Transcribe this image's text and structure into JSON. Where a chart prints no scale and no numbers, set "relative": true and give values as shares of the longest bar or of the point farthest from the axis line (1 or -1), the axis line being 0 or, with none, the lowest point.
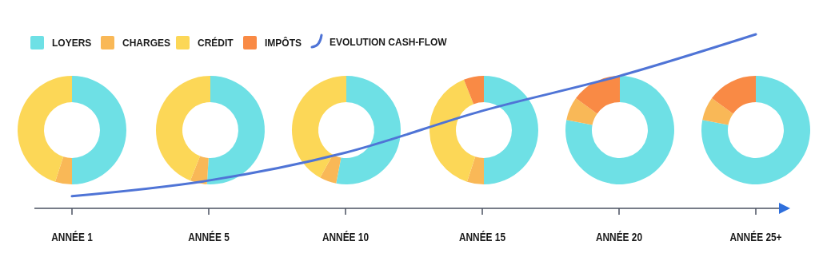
{
  "chart_data": [
    {
      "type": "line",
      "relative": true,
      "categories": [
        "ANNÉE 1",
        "ANNÉE 5",
        "ANNÉE 10",
        "ANNÉE 15",
        "ANNÉE 20",
        "ANNÉE 25+"
      ],
      "series": [
        {
          "name": "EVOLUTION CASH-FLOW",
          "color": "#4f74d6",
          "values": [
            0.07,
            0.16,
            0.32,
            0.56,
            0.76,
            1
          ]
        }
      ],
      "legend": "top",
      "marker": "none"
    },
    {
      "type": "donut",
      "categories": [
        "LOYERS",
        "CHARGES",
        "CRÉDIT",
        "IMPÔTS"
      ],
      "colors": [
        "#6ee0e5",
        "#f9b857",
        "#fcd757",
        "#f98a45"
      ],
      "legend": "top",
      "series": [
        {
          "values": [
            50,
            5,
            45,
            0
          ]
        },
        {
          "values": [
            51,
            5,
            44,
            0
          ]
        },
        {
          "values": [
            53,
            5,
            42,
            0
          ]
        },
        {
          "values": [
            50,
            5,
            39,
            6
          ]
        },
        {
          "values": [
            78,
            7,
            0,
            15
          ]
        },
        {
          "values": [
            78,
            7,
            0,
            15
          ]
        }
      ]
    }
  ]
}
